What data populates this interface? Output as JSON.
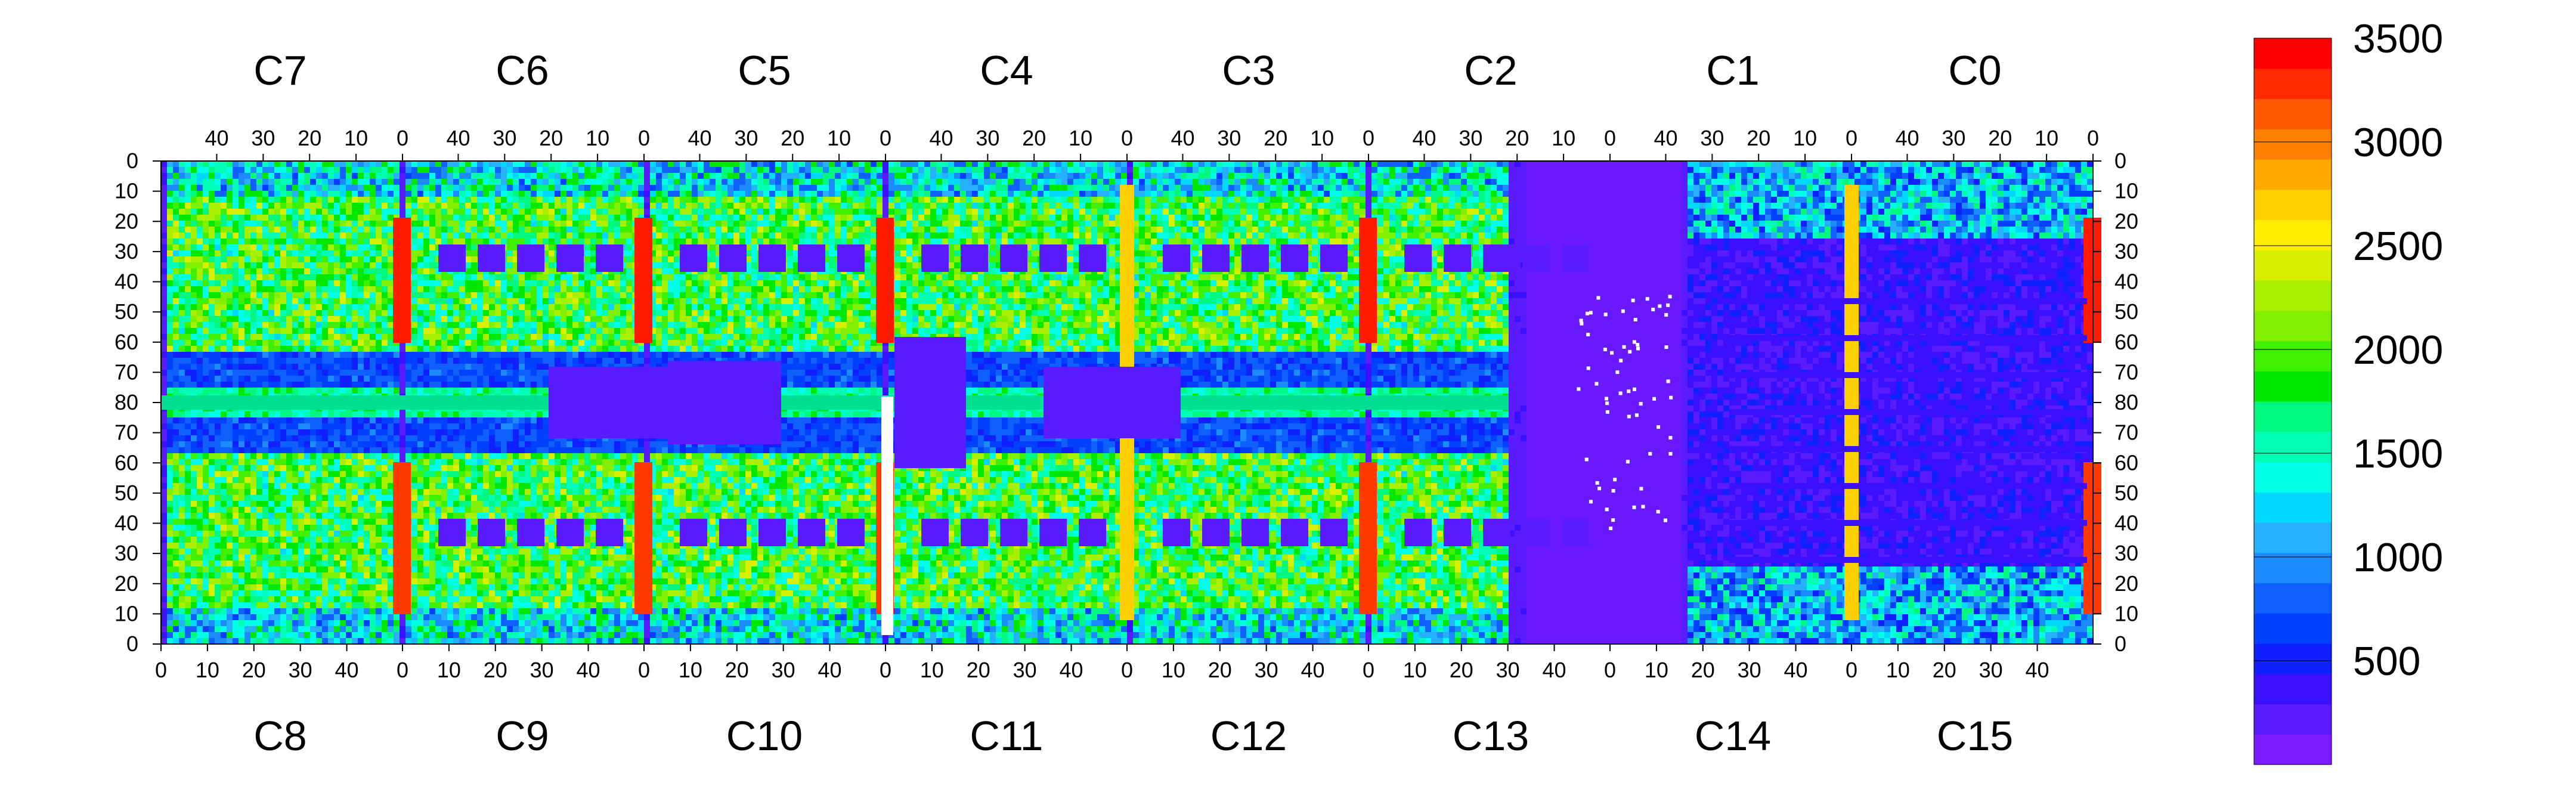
{
  "chart_data": {
    "type": "heatmap",
    "title": "",
    "xlabel": "",
    "ylabel": "",
    "top_chips": [
      "C7",
      "C6",
      "C5",
      "C4",
      "C3",
      "C2",
      "C1",
      "C0"
    ],
    "bottom_chips": [
      "C8",
      "C9",
      "C10",
      "C11",
      "C12",
      "C13",
      "C14",
      "C15"
    ],
    "top_x_ticks": [
      "40",
      "30",
      "20",
      "10",
      "0"
    ],
    "bottom_x_ticks": [
      "0",
      "10",
      "20",
      "30",
      "40"
    ],
    "top_x_tick_values": [
      40,
      30,
      20,
      10,
      0
    ],
    "bottom_x_tick_values": [
      0,
      10,
      20,
      30,
      40
    ],
    "chip_columns": 52,
    "chip_rows": 80,
    "y_ticks_top_half": [
      "0",
      "10",
      "20",
      "30",
      "40",
      "50",
      "60",
      "70",
      "80"
    ],
    "y_ticks_bottom_half": [
      "70",
      "60",
      "50",
      "40",
      "30",
      "20",
      "10",
      "0"
    ],
    "y_tick_values_top_half": [
      0,
      10,
      20,
      30,
      40,
      50,
      60,
      70,
      80
    ],
    "y_tick_values_bottom_half": [
      70,
      60,
      50,
      40,
      30,
      20,
      10,
      0
    ],
    "z_range": [
      0,
      3500
    ],
    "colorbar_ticks": [
      "3500",
      "3000",
      "2500",
      "2000",
      "1500",
      "1000",
      "500"
    ],
    "colorbar_tick_values": [
      3500,
      3000,
      2500,
      2000,
      1500,
      1000,
      500
    ],
    "colorbar_colors": [
      "#7a1cff",
      "#5a1cff",
      "#3a10ff",
      "#1020ff",
      "#0040ff",
      "#1060ff",
      "#1a8cff",
      "#26b0ff",
      "#00d8ff",
      "#00ffe6",
      "#00ffb4",
      "#00f880",
      "#00e800",
      "#40f000",
      "#80f000",
      "#a8f000",
      "#d8f000",
      "#ffee00",
      "#ffd000",
      "#ffa800",
      "#ff8000",
      "#ff5a00",
      "#ff2a00",
      "#ff0000"
    ],
    "grid": false,
    "legend": "colorbar-right"
  }
}
